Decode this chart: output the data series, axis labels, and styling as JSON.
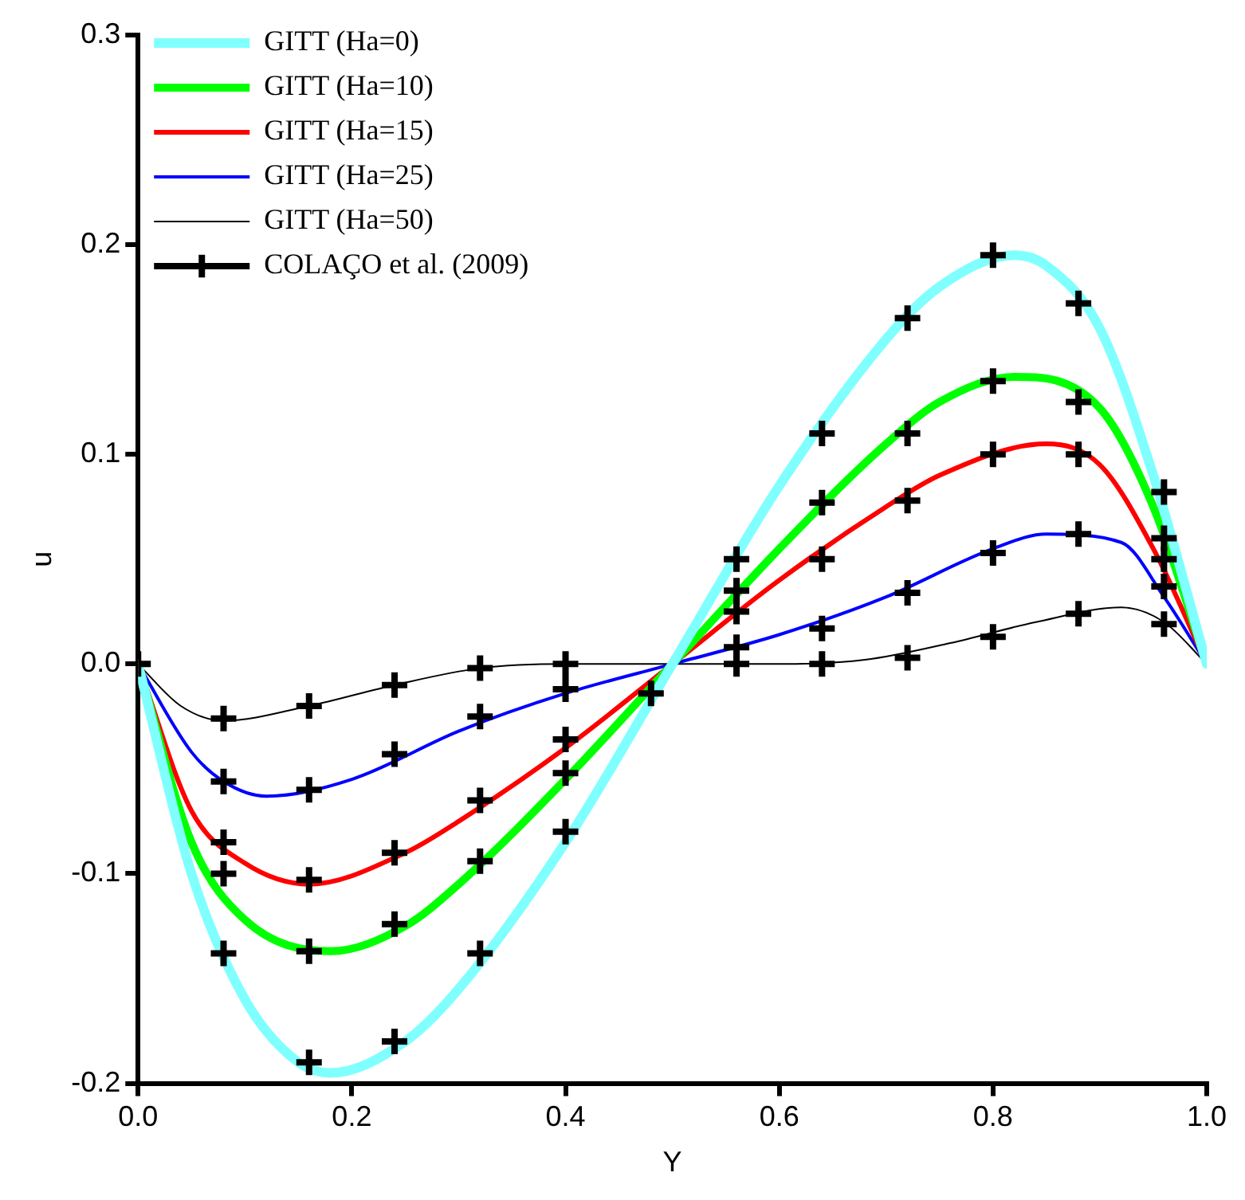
{
  "chart_data": {
    "type": "line",
    "xlabel": "Y",
    "ylabel": "u",
    "xlim": [
      0,
      1
    ],
    "ylim": [
      -0.2,
      0.3
    ],
    "xticks": [
      {
        "value": 0,
        "label": "0.0"
      },
      0.2,
      0.4,
      0.6,
      0.8,
      {
        "value": 1,
        "label": "1.0"
      }
    ],
    "yticks": [
      -0.2,
      -0.1,
      {
        "value": 0,
        "label": "0.0"
      },
      0.1,
      0.2,
      0.3
    ],
    "grid": false,
    "legend": "top left",
    "line_style": "solid",
    "series": [
      {
        "name": "GITT (Ha=0)",
        "type": "line",
        "color": "#80ffff",
        "x": [
          0,
          0.05,
          0.1,
          0.15,
          0.18,
          0.25,
          0.3,
          0.4,
          0.5,
          0.6,
          0.7,
          0.75,
          0.82,
          0.85,
          0.9,
          0.95,
          1
        ],
        "values": [
          0,
          -0.1,
          -0.16,
          -0.19,
          -0.195,
          -0.18,
          -0.155,
          -0.085,
          0,
          0.085,
          0.155,
          0.18,
          0.195,
          0.19,
          0.16,
          0.09,
          0
        ]
      },
      {
        "name": "GITT (Ha=10)",
        "type": "line",
        "color": "#00ff00",
        "x": [
          0,
          0.05,
          0.1,
          0.18,
          0.25,
          0.3,
          0.4,
          0.5,
          0.6,
          0.7,
          0.75,
          0.82,
          0.9,
          0.95,
          1
        ],
        "values": [
          0,
          -0.085,
          -0.122,
          -0.137,
          -0.125,
          -0.105,
          -0.055,
          0,
          0.055,
          0.105,
          0.125,
          0.137,
          0.122,
          0.075,
          0
        ]
      },
      {
        "name": "GITT (Ha=15)",
        "type": "line",
        "color": "#ff0000",
        "x": [
          0,
          0.05,
          0.1,
          0.16,
          0.25,
          0.3,
          0.4,
          0.5,
          0.6,
          0.7,
          0.75,
          0.85,
          0.9,
          0.95,
          1
        ],
        "values": [
          0,
          -0.07,
          -0.095,
          -0.105,
          -0.09,
          -0.075,
          -0.04,
          0,
          0.04,
          0.075,
          0.09,
          0.105,
          0.095,
          0.055,
          0
        ]
      },
      {
        "name": "GITT (Ha=25)",
        "type": "line",
        "color": "#0000ff",
        "x": [
          0,
          0.05,
          0.08,
          0.12,
          0.2,
          0.3,
          0.4,
          0.5,
          0.6,
          0.7,
          0.8,
          0.85,
          0.92,
          0.96,
          1
        ],
        "values": [
          0,
          -0.042,
          -0.056,
          -0.063,
          -0.055,
          -0.032,
          -0.014,
          0,
          0.014,
          0.032,
          0.055,
          0.062,
          0.058,
          0.032,
          0
        ]
      },
      {
        "name": "GITT (Ha=50)",
        "type": "line",
        "color": "#000000",
        "x": [
          0,
          0.04,
          0.08,
          0.16,
          0.24,
          0.32,
          0.4,
          0.5,
          0.6,
          0.68,
          0.76,
          0.84,
          0.92,
          0.96,
          1
        ],
        "values": [
          0,
          -0.02,
          -0.027,
          -0.02,
          -0.01,
          -0.002,
          0,
          0,
          0,
          0.002,
          0.01,
          0.02,
          0.027,
          0.02,
          0
        ]
      },
      {
        "name": "COLAÇO et al. (2009)",
        "type": "scatter",
        "marker": "cross",
        "color": "#000000",
        "x": [
          0,
          0.08,
          0.16,
          0.24,
          0.32,
          0.4,
          0.48,
          0.56,
          0.64,
          0.72,
          0.8,
          0.88,
          0.96,
          0.08,
          0.16,
          0.24,
          0.32,
          0.4,
          0.56,
          0.64,
          0.72,
          0.8,
          0.88,
          0.96,
          0.08,
          0.16,
          0.24,
          0.32,
          0.4,
          0.56,
          0.64,
          0.72,
          0.8,
          0.88,
          0.96,
          0.08,
          0.16,
          0.24,
          0.32,
          0.4,
          0.56,
          0.64,
          0.72,
          0.8,
          0.88,
          0.96,
          0.08,
          0.16,
          0.24,
          0.32,
          0.4,
          0.56,
          0.64,
          0.72,
          0.8,
          0.88,
          0.96
        ],
        "values": [
          0,
          -0.138,
          -0.19,
          -0.18,
          -0.138,
          -0.08,
          -0.014,
          0.05,
          0.11,
          0.165,
          0.195,
          0.172,
          0.082,
          -0.1,
          -0.137,
          -0.124,
          -0.094,
          -0.052,
          0.035,
          0.077,
          0.11,
          0.135,
          0.125,
          0.06,
          -0.085,
          -0.103,
          -0.09,
          -0.065,
          -0.036,
          0.025,
          0.05,
          0.078,
          0.1,
          0.1,
          0.05,
          -0.056,
          -0.06,
          -0.043,
          -0.025,
          -0.012,
          0.008,
          0.017,
          0.034,
          0.053,
          0.062,
          0.037,
          -0.026,
          -0.02,
          -0.01,
          -0.002,
          0,
          0,
          0,
          0.003,
          0.013,
          0.024,
          0.019
        ]
      }
    ]
  }
}
